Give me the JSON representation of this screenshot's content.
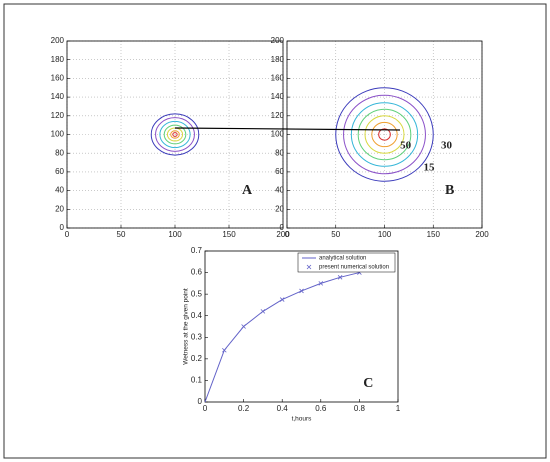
{
  "chart_data": [
    {
      "type": "contour",
      "annotation": "A",
      "center": [
        100,
        100
      ],
      "radii": [
        22,
        18,
        14,
        10,
        7,
        4,
        2
      ],
      "colors": [
        "#3b3bbb",
        "#8a50c8",
        "#35b6d8",
        "#5fd07a",
        "#d8d840",
        "#f0a030",
        "#d83030"
      ],
      "xlim": [
        0,
        200
      ],
      "xticks": [
        0,
        50,
        100,
        150,
        200
      ],
      "ylim": [
        0,
        200
      ],
      "yticks": [
        0,
        20,
        40,
        60,
        80,
        100,
        120,
        140,
        160,
        180,
        200
      ],
      "grid": true
    },
    {
      "type": "contour",
      "annotation": "B",
      "center": [
        100,
        100
      ],
      "radii": [
        50,
        42,
        34,
        27,
        20,
        13,
        6
      ],
      "colors": [
        "#3b3bbb",
        "#8a50c8",
        "#35b6d8",
        "#5fd07a",
        "#d8d840",
        "#f0a030",
        "#d83030"
      ],
      "contour_labels": [
        "50",
        "30",
        "15"
      ],
      "xlim": [
        0,
        200
      ],
      "xticks": [
        0,
        50,
        100,
        150,
        200
      ],
      "ylim": [
        0,
        200
      ],
      "yticks": [
        0,
        20,
        40,
        60,
        80,
        100,
        120,
        140,
        160,
        180,
        200
      ],
      "grid": true
    },
    {
      "type": "line",
      "annotation": "C",
      "xlabel": "t,hours",
      "ylabel": "Wetness at the given point",
      "x": [
        0,
        0.1,
        0.2,
        0.3,
        0.4,
        0.5,
        0.6,
        0.7,
        0.8
      ],
      "series": [
        {
          "name": "analytical solution",
          "color": "#6262c8",
          "mode": "line",
          "values": [
            0,
            0.24,
            0.35,
            0.42,
            0.475,
            0.515,
            0.55,
            0.578,
            0.6
          ]
        },
        {
          "name": "present numerical solution",
          "color": "#6262c8",
          "mode": "markers",
          "values": [
            null,
            0.24,
            0.35,
            0.42,
            0.475,
            0.515,
            0.55,
            0.578,
            0.6
          ]
        }
      ],
      "xlim": [
        0,
        1
      ],
      "xticks": [
        0,
        0.2,
        0.4,
        0.6,
        0.8,
        1
      ],
      "ylim": [
        0,
        0.7
      ],
      "yticks": [
        0,
        0.1,
        0.2,
        0.3,
        0.4,
        0.5,
        0.6,
        0.7
      ],
      "grid": false
    }
  ]
}
